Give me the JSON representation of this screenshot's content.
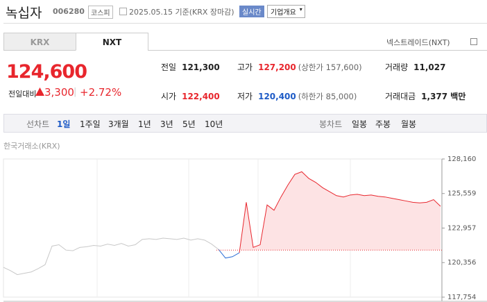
{
  "header": {
    "name": "녹십자",
    "code": "006280",
    "market": "코스피",
    "date": "2025.05.15 기준(KRX 장마감)",
    "badge": "실시간",
    "button": "기업개요"
  },
  "tabs": [
    "KRX",
    "NXT"
  ],
  "nxt_link": "넥스트레이드(NXT)",
  "price": {
    "current": "124,600",
    "change_label": "전일대비",
    "change": "3,300",
    "rate": "+2.72%"
  },
  "stats": [
    {
      "label": "전일",
      "value": "121,300"
    },
    {
      "label": "고가",
      "value": "127,200",
      "note": "(상한가 157,600)"
    },
    {
      "label": "거래량",
      "value": "11,027"
    },
    {
      "label": "시가",
      "value": "122,400"
    },
    {
      "label": "저가",
      "value": "120,400",
      "note": "(하한가 85,000)"
    },
    {
      "label": "거래대금",
      "value": "1,377 백만"
    }
  ],
  "toolbar": {
    "line_label": "선차트",
    "periods": [
      "1일",
      "1주일",
      "3개월",
      "1년",
      "3년",
      "5년",
      "10년"
    ],
    "candle_label": "봉차트",
    "candles": [
      "일봉",
      "주봉",
      "월봉"
    ]
  },
  "chart_data": {
    "type": "line",
    "source": "한국거래소(KRX)",
    "ylim": [
      117754,
      128160
    ],
    "yticks": [
      {
        "value": 128160,
        "label": "128,160"
      },
      {
        "value": 125559,
        "label": "125,559"
      },
      {
        "value": 122957,
        "label": "122,957"
      },
      {
        "value": 120356,
        "label": "120,356"
      },
      {
        "value": 117754,
        "label": "117,754"
      }
    ],
    "baseline": 121300,
    "series": [
      {
        "color": "#c8c8c8",
        "values": [
          120000,
          119750,
          119450,
          119550,
          119650,
          119900,
          120200,
          121600,
          121700,
          121300,
          121250,
          121500,
          121550,
          121650,
          121600,
          121750,
          121650,
          121800,
          121600,
          121700,
          122100,
          122150,
          122100,
          122200,
          122150,
          122100,
          122200,
          122050,
          122150,
          122050,
          121750,
          121350,
          null,
          null,
          null,
          null,
          null,
          null,
          null,
          null,
          null,
          null,
          null,
          null,
          null,
          null,
          null,
          null,
          null,
          null,
          null,
          null,
          null,
          null,
          null,
          null,
          null,
          null,
          null,
          null,
          null,
          null,
          null,
          null
        ]
      },
      {
        "color": "#2a6ed6",
        "values": [
          null,
          null,
          null,
          null,
          null,
          null,
          null,
          null,
          null,
          null,
          null,
          null,
          null,
          null,
          null,
          null,
          null,
          null,
          null,
          null,
          null,
          null,
          null,
          null,
          null,
          null,
          null,
          null,
          null,
          null,
          null,
          121350,
          120700,
          120800,
          121100,
          null,
          null,
          null,
          null,
          null,
          null,
          null,
          null,
          null,
          null,
          null,
          null,
          null,
          null,
          null,
          null,
          null,
          null,
          null,
          null,
          null,
          null,
          null,
          null,
          null,
          null,
          null,
          null,
          null
        ]
      },
      {
        "color": "#e8262d",
        "fill": "#fde3e4",
        "values": [
          null,
          null,
          null,
          null,
          null,
          null,
          null,
          null,
          null,
          null,
          null,
          null,
          null,
          null,
          null,
          null,
          null,
          null,
          null,
          null,
          null,
          null,
          null,
          null,
          null,
          null,
          null,
          null,
          null,
          null,
          null,
          null,
          null,
          null,
          121100,
          124900,
          121500,
          121700,
          124700,
          124300,
          125300,
          126200,
          127000,
          127200,
          126700,
          126400,
          126000,
          125700,
          125400,
          125300,
          125450,
          125500,
          125400,
          125450,
          125350,
          125300,
          125200,
          125100,
          125000,
          124900,
          124850,
          124900,
          125100,
          124600
        ]
      }
    ]
  }
}
